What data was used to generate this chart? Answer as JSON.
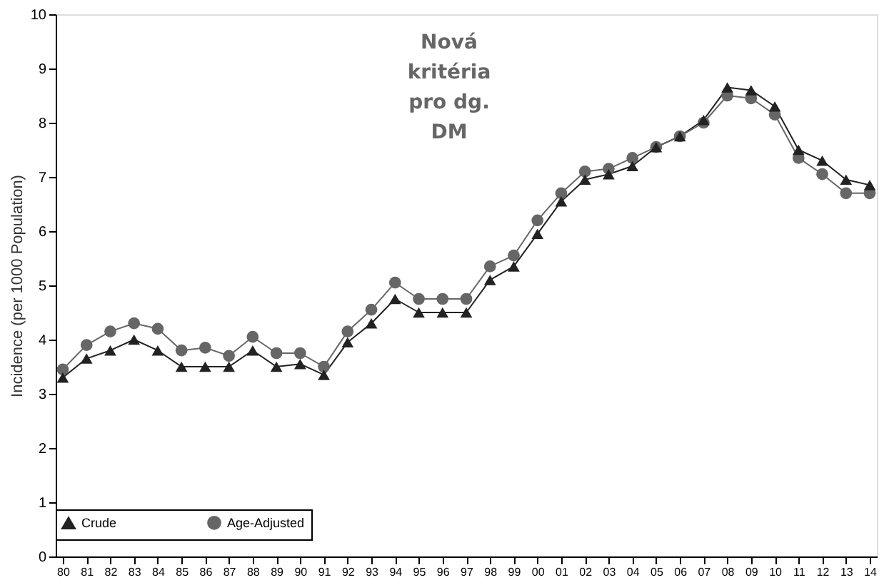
{
  "chart_data": {
    "type": "line",
    "ylabel": "Incidence (per 1000 Population)",
    "categories": [
      "80",
      "81",
      "82",
      "83",
      "84",
      "85",
      "86",
      "87",
      "88",
      "89",
      "90",
      "91",
      "92",
      "93",
      "94",
      "95",
      "96",
      "97",
      "98",
      "99",
      "00",
      "01",
      "02",
      "03",
      "04",
      "05",
      "06",
      "07",
      "08",
      "09",
      "10",
      "11",
      "12",
      "13",
      "14"
    ],
    "series": [
      {
        "name": "Crude",
        "color": "#222222",
        "marker": "triangle",
        "values": [
          3.3,
          3.65,
          3.8,
          4.0,
          3.8,
          3.5,
          3.5,
          3.5,
          3.8,
          3.5,
          3.55,
          3.35,
          3.95,
          4.3,
          4.75,
          4.5,
          4.5,
          4.5,
          5.1,
          5.35,
          5.95,
          6.55,
          6.95,
          7.05,
          7.2,
          7.55,
          7.75,
          8.05,
          8.65,
          8.6,
          8.3,
          7.5,
          7.3,
          6.95,
          6.85
        ]
      },
      {
        "name": "Age-Adjusted",
        "color": "#666666",
        "marker": "circle",
        "values": [
          3.45,
          3.9,
          4.15,
          4.3,
          4.2,
          3.8,
          3.85,
          3.7,
          4.05,
          3.75,
          3.75,
          3.5,
          4.15,
          4.55,
          5.05,
          4.75,
          4.75,
          4.75,
          5.35,
          5.55,
          6.2,
          6.7,
          7.1,
          7.15,
          7.35,
          7.55,
          7.75,
          8.0,
          8.5,
          8.45,
          8.15,
          7.35,
          7.05,
          6.7,
          6.7
        ]
      }
    ],
    "ylim": [
      0,
      10
    ],
    "yticks": [
      0,
      1,
      2,
      3,
      4,
      5,
      6,
      7,
      8,
      9,
      10
    ],
    "grid": false,
    "legend": "bottom",
    "line_style": "solid",
    "annotations": [
      "Nová kritéria pro dg. DM"
    ]
  }
}
